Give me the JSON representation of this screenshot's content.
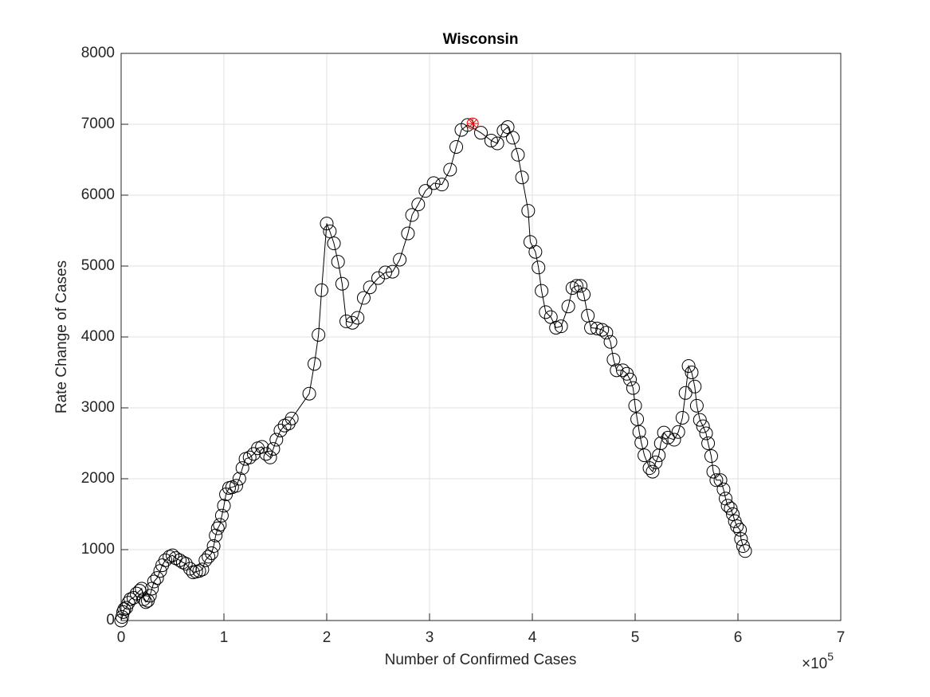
{
  "chart_data": {
    "type": "line",
    "title": "Wisconsin",
    "x_label": "Number of Confirmed Cases",
    "y_label": "Rate Change of Cases",
    "x_multiplier": {
      "base": "×10",
      "exponent": "5"
    },
    "xlim": [
      0,
      7
    ],
    "xticks": [
      0,
      1,
      2,
      3,
      4,
      5,
      6,
      7
    ],
    "ylim": [
      0,
      8000
    ],
    "yticks": [
      0,
      1000,
      2000,
      3000,
      4000,
      5000,
      6000,
      7000,
      8000
    ],
    "grid": true,
    "log_scale": false,
    "series": [
      {
        "color": "#000000",
        "marker": "circle",
        "x": [
          0,
          0.01,
          0.02,
          0.03,
          0.05,
          0.07,
          0.09,
          0.12,
          0.15,
          0.18,
          0.2,
          0.22,
          0.24,
          0.26,
          0.28,
          0.3,
          0.32,
          0.35,
          0.38,
          0.4,
          0.43,
          0.47,
          0.5,
          0.53,
          0.57,
          0.6,
          0.63,
          0.67,
          0.7,
          0.73,
          0.76,
          0.79,
          0.82,
          0.85,
          0.88,
          0.9,
          0.92,
          0.94,
          0.96,
          0.98,
          1.0,
          1.02,
          1.05,
          1.08,
          1.12,
          1.15,
          1.18,
          1.21,
          1.25,
          1.29,
          1.33,
          1.37,
          1.41,
          1.45,
          1.48,
          1.51,
          1.55,
          1.59,
          1.63,
          1.66,
          1.83,
          1.88,
          1.92,
          1.95,
          2.0,
          2.03,
          2.07,
          2.11,
          2.15,
          2.19,
          2.25,
          2.3,
          2.36,
          2.42,
          2.5,
          2.57,
          2.64,
          2.71,
          2.79,
          2.83,
          2.89,
          2.96,
          3.04,
          3.12,
          3.2,
          3.26,
          3.31,
          3.37,
          3.5,
          3.6,
          3.66,
          3.72,
          3.76,
          3.81,
          3.86,
          3.9,
          3.96,
          3.98,
          4.03,
          4.06,
          4.09,
          4.13,
          4.18,
          4.23,
          4.28,
          4.35,
          4.39,
          4.43,
          4.47,
          4.5,
          4.54,
          4.57,
          4.63,
          4.68,
          4.72,
          4.76,
          4.79,
          4.82,
          4.88,
          4.92,
          4.95,
          4.98,
          5.0,
          5.02,
          5.04,
          5.06,
          5.09,
          5.14,
          5.17,
          5.2,
          5.23,
          5.25,
          5.28,
          5.32,
          5.38,
          5.42,
          5.46,
          5.49,
          5.52,
          5.55,
          5.58,
          5.6,
          5.63,
          5.66,
          5.69,
          5.71,
          5.74,
          5.76,
          5.79,
          5.83,
          5.86,
          5.88,
          5.9,
          5.93,
          5.95,
          5.97,
          5.99,
          6.02,
          6.03,
          6.05,
          6.07
        ],
        "values": [
          0,
          50,
          120,
          160,
          180,
          250,
          300,
          320,
          380,
          420,
          450,
          300,
          260,
          280,
          350,
          450,
          550,
          600,
          700,
          780,
          850,
          900,
          920,
          880,
          850,
          820,
          800,
          730,
          680,
          690,
          700,
          720,
          850,
          900,
          950,
          1050,
          1200,
          1300,
          1350,
          1480,
          1620,
          1780,
          1870,
          1880,
          1900,
          2000,
          2150,
          2280,
          2300,
          2350,
          2430,
          2450,
          2350,
          2300,
          2420,
          2550,
          2680,
          2750,
          2780,
          2850,
          3200,
          3620,
          4030,
          4660,
          5600,
          5490,
          5320,
          5060,
          4750,
          4220,
          4200,
          4270,
          4550,
          4700,
          4830,
          4910,
          4920,
          5090,
          5460,
          5720,
          5870,
          6060,
          6170,
          6150,
          6360,
          6680,
          6920,
          6990,
          6880,
          6770,
          6730,
          6910,
          6960,
          6810,
          6570,
          6250,
          5780,
          5340,
          5200,
          4980,
          4650,
          4350,
          4280,
          4130,
          4150,
          4430,
          4690,
          4720,
          4720,
          4600,
          4300,
          4130,
          4120,
          4100,
          4060,
          3930,
          3680,
          3530,
          3530,
          3480,
          3400,
          3280,
          3030,
          2840,
          2660,
          2510,
          2330,
          2150,
          2100,
          2230,
          2330,
          2500,
          2650,
          2580,
          2550,
          2660,
          2860,
          3210,
          3590,
          3500,
          3300,
          3030,
          2830,
          2740,
          2640,
          2500,
          2320,
          2100,
          1980,
          1980,
          1850,
          1720,
          1620,
          1580,
          1500,
          1400,
          1330,
          1280,
          1150,
          1050,
          980
        ]
      },
      {
        "color": "#ff0000",
        "marker": "asterisk",
        "x": [
          3.42
        ],
        "values": [
          7010
        ]
      }
    ]
  }
}
